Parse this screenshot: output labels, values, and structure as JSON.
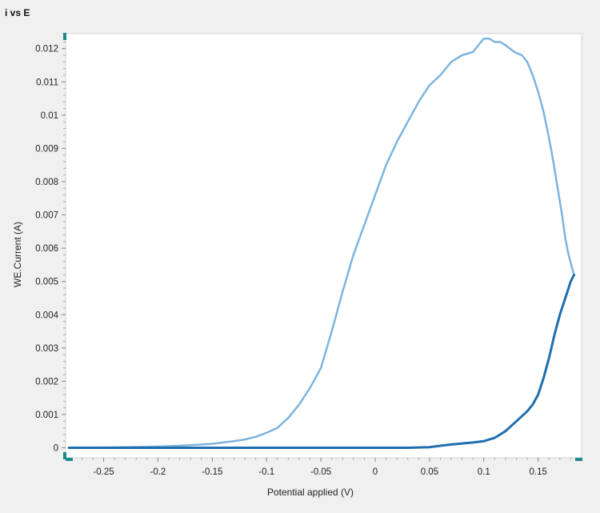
{
  "chart_title": "i vs E",
  "chart_data": {
    "type": "line",
    "title": "i vs E",
    "xlabel": "Potential applied (V)",
    "ylabel": "WE.Current (A)",
    "xlim": [
      -0.285,
      0.19
    ],
    "ylim": [
      -0.0003,
      0.01245
    ],
    "x_ticks": [
      "-0.25",
      "-0.2",
      "-0.15",
      "-0.1",
      "-0.05",
      "0",
      "0.05",
      "0.1",
      "0.15"
    ],
    "y_ticks": [
      "0",
      "0.001",
      "0.002",
      "0.003",
      "0.004",
      "0.005",
      "0.006",
      "0.007",
      "0.008",
      "0.009",
      "0.01",
      "0.011",
      "0.012"
    ],
    "x_tick_values": [
      -0.25,
      -0.2,
      -0.15,
      -0.1,
      -0.05,
      0,
      0.05,
      0.1,
      0.15
    ],
    "y_tick_values": [
      0,
      0.001,
      0.002,
      0.003,
      0.004,
      0.005,
      0.006,
      0.007,
      0.008,
      0.009,
      0.01,
      0.011,
      0.012
    ],
    "grid": false,
    "legend": "none",
    "series": [
      {
        "color": "#7db4df",
        "x": [
          0.183,
          0.178,
          0.175,
          0.172,
          0.168,
          0.164,
          0.16,
          0.155,
          0.15,
          0.145,
          0.14,
          0.135,
          0.128,
          0.12,
          0.115,
          0.11,
          0.105,
          0.1,
          0.095,
          0.09,
          0.08,
          0.07,
          0.06,
          0.05,
          0.04,
          0.03,
          0.02,
          0.01,
          0.0,
          -0.01,
          -0.02,
          -0.03,
          -0.04,
          -0.05,
          -0.06,
          -0.07,
          -0.08,
          -0.09,
          -0.1,
          -0.11,
          -0.12,
          -0.13,
          -0.14,
          -0.15,
          -0.17,
          -0.19,
          -0.21,
          -0.23,
          -0.25,
          -0.27,
          -0.282
        ],
        "y": [
          0.0052,
          0.0058,
          0.0063,
          0.007,
          0.0078,
          0.0086,
          0.0093,
          0.0101,
          0.0107,
          0.0112,
          0.0116,
          0.0118,
          0.0119,
          0.0121,
          0.0122,
          0.0122,
          0.0123,
          0.0123,
          0.0121,
          0.0119,
          0.0118,
          0.0116,
          0.0112,
          0.0109,
          0.0104,
          0.0098,
          0.0092,
          0.0085,
          0.0076,
          0.0067,
          0.0058,
          0.0047,
          0.0035,
          0.0024,
          0.0018,
          0.0013,
          0.0009,
          0.0006,
          0.00045,
          0.00033,
          0.00025,
          0.0002,
          0.00016,
          0.00012,
          8e-05,
          5e-05,
          3e-05,
          2e-05,
          1e-05,
          5e-06,
          0.0
        ]
      },
      {
        "color": "#1f6fae",
        "x": [
          -0.282,
          -0.25,
          -0.2,
          -0.15,
          -0.1,
          -0.05,
          0.0,
          0.03,
          0.05,
          0.06,
          0.07,
          0.08,
          0.09,
          0.1,
          0.11,
          0.12,
          0.13,
          0.14,
          0.145,
          0.15,
          0.155,
          0.16,
          0.165,
          0.17,
          0.175,
          0.18,
          0.183
        ],
        "y": [
          0.0,
          0.0,
          0.0,
          0.0,
          0.0,
          0.0,
          0.0,
          0.0,
          2e-05,
          6e-05,
          0.0001,
          0.00013,
          0.00016,
          0.0002,
          0.0003,
          0.0005,
          0.0008,
          0.0011,
          0.0013,
          0.0016,
          0.0021,
          0.0027,
          0.0034,
          0.004,
          0.0045,
          0.005,
          0.0052
        ]
      }
    ]
  }
}
